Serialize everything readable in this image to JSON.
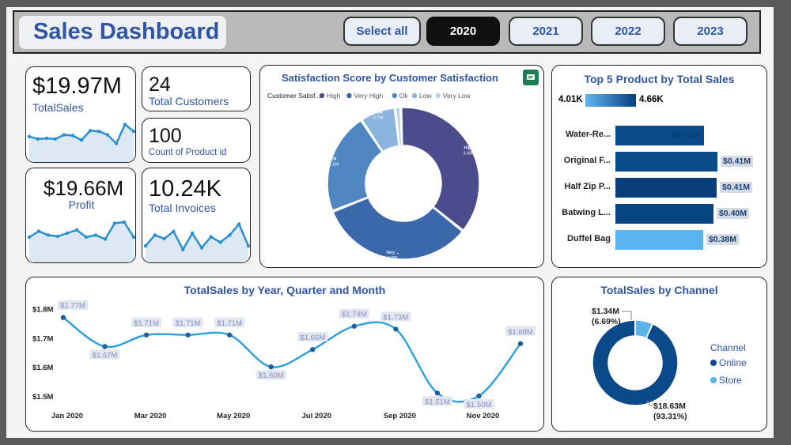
{
  "header": {
    "title": "Sales Dashboard",
    "buttons": [
      {
        "label": "Select all",
        "active": false
      },
      {
        "label": "2020",
        "active": true
      },
      {
        "label": "2021",
        "active": false
      },
      {
        "label": "2022",
        "active": false
      },
      {
        "label": "2023",
        "active": false
      }
    ]
  },
  "kpis": {
    "total_sales": {
      "value": "$19.97M",
      "label": "TotalSales",
      "trend": [
        0.55,
        0.48,
        0.5,
        0.48,
        0.6,
        0.58,
        0.45,
        0.72,
        0.7,
        0.6,
        0.35,
        0.9,
        0.7
      ]
    },
    "customers": {
      "value": "24",
      "label": "Total Customers"
    },
    "products": {
      "value": "100",
      "label": "Count of Product id"
    },
    "profit": {
      "value": "$19.66M",
      "label": "Profit",
      "trend": [
        0.5,
        0.65,
        0.55,
        0.52,
        0.6,
        0.68,
        0.5,
        0.55,
        0.45,
        0.85,
        0.88,
        0.5
      ]
    },
    "invoices": {
      "value": "10.24K",
      "label": "Total Invoices",
      "trend": [
        0.3,
        0.6,
        0.5,
        0.7,
        0.2,
        0.65,
        0.25,
        0.55,
        0.4,
        0.6,
        0.9,
        0.3
      ]
    }
  },
  "satisfaction": {
    "title": "Satisfaction Score by Customer Satisfaction",
    "legend_title": "Customer Satisf...",
    "segments": [
      {
        "name": "High",
        "value": 3.6,
        "display": "3.60K",
        "color": "#4a4c8c"
      },
      {
        "name": "Very High",
        "value": 3.3,
        "display": "3.30K",
        "color": "#3b67ab"
      },
      {
        "name": "Ok",
        "value": 2.15,
        "display": "2.15K",
        "color": "#4f87c2"
      },
      {
        "name": "Low",
        "value": 0.75,
        "display": "0.75K",
        "color": "#8bb5df"
      },
      {
        "name": "Very Low",
        "value": 0.12,
        "display": "",
        "color": "#b6cfea"
      }
    ],
    "slice_labels": {
      "High": "High",
      "Very High": "Very ...",
      "Ok": "Ok",
      "Low": "Low"
    }
  },
  "top_products": {
    "title": "Top 5 Product by Total Sales",
    "scale_min": "4.01K",
    "scale_max": "4.66K",
    "items": [
      {
        "name": "Water-Re...",
        "value": 0.41,
        "label": "$0.41M",
        "color": "#0a4a8a"
      },
      {
        "name": "Original F...",
        "value": 0.41,
        "label": "$0.41M",
        "color": "#0a4a8a"
      },
      {
        "name": "Half Zip P...",
        "value": 0.41,
        "label": "$0.41M",
        "color": "#083f7a"
      },
      {
        "name": "Batwing L...",
        "value": 0.4,
        "label": "$0.40M",
        "color": "#084583"
      },
      {
        "name": "Duffel Bag",
        "value": 0.38,
        "label": "$0.38M",
        "color": "#5cb4ee"
      }
    ]
  },
  "chart_data": [
    {
      "type": "line",
      "title": "TotalSales by Year, Quarter and Month",
      "x": [
        "Jan 2020",
        "Feb 2020",
        "Mar 2020",
        "Apr 2020",
        "May 2020",
        "Jun 2020",
        "Jul 2020",
        "Aug 2020",
        "Sep 2020",
        "Oct 2020",
        "Nov 2020",
        "Dec 2020"
      ],
      "x_tick_labels": [
        "Jan 2020",
        "Mar 2020",
        "May 2020",
        "Jul 2020",
        "Sep 2020",
        "Nov 2020"
      ],
      "values": [
        1.77,
        1.67,
        1.71,
        1.71,
        1.71,
        1.6,
        1.66,
        1.74,
        1.73,
        1.51,
        1.5,
        1.68
      ],
      "labels": [
        "$1.77M",
        "$1.67M",
        "$1.71M",
        "$1.71M",
        "$1.71M",
        "$1.60M",
        "$1.66M",
        "$1.74M",
        "$1.73M",
        "$1.51M",
        "$1.50M",
        "$1.68M"
      ],
      "y_ticks": [
        1.5,
        1.6,
        1.7,
        1.8
      ],
      "y_tick_labels": [
        "$1.5M",
        "$1.6M",
        "$1.7M",
        "$1.8M"
      ],
      "ylim": [
        1.47,
        1.81
      ],
      "color": "#2a9fe0"
    },
    {
      "type": "pie",
      "title": "TotalSales by Channel",
      "legend_title": "Channel",
      "segments": [
        {
          "name": "Online",
          "value": 18.63,
          "label": "$18.63M",
          "pct": "(93.31%)",
          "color": "#0a4a8a"
        },
        {
          "name": "Store",
          "value": 1.34,
          "label": "$1.34M",
          "pct": "(6.69%)",
          "color": "#5cb4ee"
        }
      ]
    }
  ]
}
